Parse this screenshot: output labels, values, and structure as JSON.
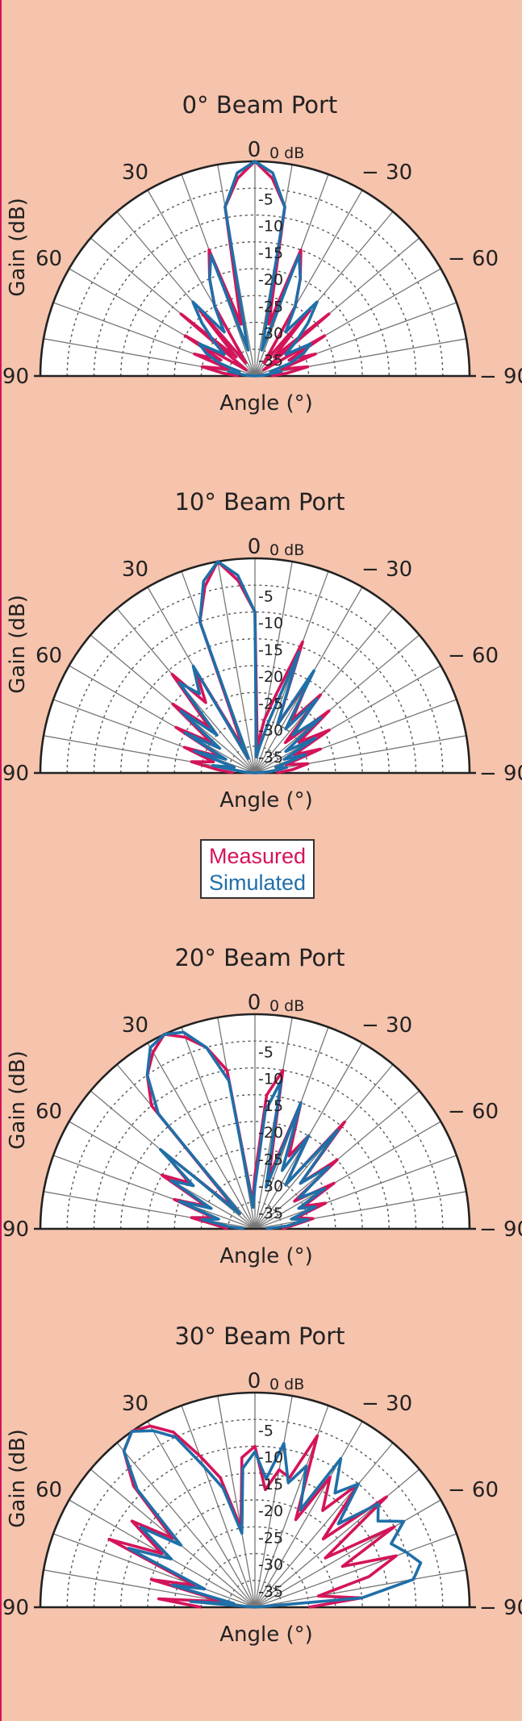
{
  "colors": {
    "background": "#f6c3ad",
    "measured": "#d4145a",
    "simulated": "#1f6fa8",
    "grid": "#555555"
  },
  "legend": {
    "measured": "Measured",
    "simulated": "Simulated"
  },
  "chart_data": [
    {
      "type": "polar",
      "title": "0°  Beam Port",
      "xlabel": "Angle (°)",
      "ylabel": "Gain (dB)",
      "angle_ticks": [
        "90",
        "60",
        "30",
        "0",
        "− 30",
        "− 60",
        "− 90"
      ],
      "radial_ticks": [
        "0 dB",
        "-5",
        "-10",
        "-15",
        "-20",
        "-25",
        "-30",
        "-35"
      ],
      "rlim": [
        -40,
        0
      ],
      "series": [
        {
          "name": "Measured",
          "angles": [
            -90,
            -85,
            -80,
            -75,
            -70,
            -65,
            -60,
            -55,
            -50,
            -45,
            -40,
            -35,
            -30,
            -25,
            -20,
            -15,
            -10,
            -5,
            0,
            5,
            10,
            15,
            20,
            25,
            30,
            35,
            40,
            45,
            50,
            55,
            60,
            65,
            70,
            75,
            80,
            85,
            90
          ],
          "values": [
            -37,
            -34,
            -30,
            -35,
            -28,
            -33,
            -25,
            -38,
            -22,
            -35,
            -24,
            -37,
            -25,
            -20,
            -15,
            -30,
            -8,
            -3,
            0,
            -3,
            -8,
            -30,
            -15,
            -20,
            -25,
            -37,
            -24,
            -35,
            -22,
            -38,
            -25,
            -33,
            -28,
            -35,
            -30,
            -34,
            -37
          ]
        },
        {
          "name": "Simulated",
          "angles": [
            -90,
            -85,
            -80,
            -75,
            -70,
            -65,
            -60,
            -55,
            -50,
            -45,
            -40,
            -35,
            -30,
            -25,
            -20,
            -15,
            -10,
            -5,
            0,
            5,
            10,
            15,
            20,
            25,
            30,
            35,
            40,
            45,
            50,
            55,
            60,
            65,
            70,
            75,
            80,
            85,
            90
          ],
          "values": [
            -40,
            -38,
            -35,
            -37,
            -33,
            -30,
            -28,
            -33,
            -30,
            -26,
            -22,
            -30,
            -25,
            -20,
            -16,
            -35,
            -8,
            -2,
            0,
            -2,
            -8,
            -35,
            -16,
            -20,
            -25,
            -30,
            -22,
            -26,
            -30,
            -33,
            -28,
            -30,
            -33,
            -37,
            -35,
            -38,
            -40
          ]
        }
      ]
    },
    {
      "type": "polar",
      "title": "10°  Beam Port",
      "xlabel": "Angle (°)",
      "ylabel": "Gain (dB)",
      "angle_ticks": [
        "90",
        "60",
        "30",
        "0",
        "− 30",
        "− 60",
        "− 90"
      ],
      "radial_ticks": [
        "0 dB",
        "-5",
        "-10",
        "-15",
        "-20",
        "-25",
        "-30",
        "-35"
      ],
      "rlim": [
        -40,
        0
      ],
      "series": [
        {
          "name": "Measured",
          "angles": [
            -90,
            -85,
            -80,
            -75,
            -70,
            -65,
            -60,
            -55,
            -50,
            -45,
            -40,
            -35,
            -30,
            -25,
            -20,
            -15,
            -10,
            -5,
            0,
            5,
            10,
            15,
            20,
            25,
            30,
            35,
            40,
            45,
            50,
            55,
            60,
            65,
            70,
            75,
            80,
            85,
            90
          ],
          "values": [
            -36,
            -33,
            -30,
            -34,
            -27,
            -32,
            -24,
            -30,
            -22,
            -32,
            -21,
            -28,
            -20,
            -30,
            -14,
            -25,
            -30,
            -35,
            -10,
            -4,
            0,
            -4,
            -10,
            -35,
            -18,
            -24,
            -16,
            -28,
            -20,
            -30,
            -23,
            -33,
            -26,
            -32,
            -28,
            -33,
            -36
          ]
        },
        {
          "name": "Simulated",
          "angles": [
            -90,
            -85,
            -80,
            -75,
            -70,
            -65,
            -60,
            -55,
            -50,
            -45,
            -40,
            -35,
            -30,
            -25,
            -20,
            -15,
            -10,
            -5,
            0,
            5,
            10,
            15,
            20,
            25,
            30,
            35,
            40,
            45,
            50,
            55,
            60,
            65,
            70,
            75,
            80,
            85,
            90
          ],
          "values": [
            -40,
            -37,
            -34,
            -36,
            -30,
            -34,
            -27,
            -33,
            -24,
            -30,
            -22,
            -30,
            -18,
            -30,
            -16,
            -30,
            -35,
            -37,
            -10,
            -3,
            0,
            -3,
            -10,
            -37,
            -17,
            -22,
            -18,
            -30,
            -22,
            -32,
            -25,
            -34,
            -28,
            -36,
            -32,
            -38,
            -40
          ]
        }
      ]
    },
    {
      "type": "polar",
      "title": "20°  Beam Port",
      "xlabel": "Angle (°)",
      "ylabel": "Gain (dB)",
      "angle_ticks": [
        "90",
        "60",
        "30",
        "0",
        "− 30",
        "− 60",
        "− 90"
      ],
      "radial_ticks": [
        "0 dB",
        "-5",
        "-10",
        "-15",
        "-20",
        "-25",
        "-30",
        "-35"
      ],
      "rlim": [
        -40,
        0
      ],
      "series": [
        {
          "name": "Measured",
          "angles": [
            -90,
            -85,
            -80,
            -75,
            -70,
            -65,
            -60,
            -55,
            -50,
            -45,
            -40,
            -35,
            -30,
            -25,
            -20,
            -15,
            -10,
            -5,
            0,
            5,
            10,
            15,
            20,
            25,
            30,
            35,
            40,
            45,
            50,
            55,
            60,
            65,
            70,
            75,
            80,
            85,
            90
          ],
          "values": [
            -35,
            -33,
            -29,
            -32,
            -26,
            -30,
            -23,
            -31,
            -20,
            -28,
            -14,
            -30,
            -20,
            -25,
            -15,
            -30,
            -10,
            -15,
            -30,
            -35,
            -10,
            -5,
            -2,
            0,
            -2,
            -5,
            -10,
            -35,
            -18,
            -25,
            -20,
            -30,
            -24,
            -32,
            -28,
            -33,
            -35
          ]
        },
        {
          "name": "Simulated",
          "angles": [
            -90,
            -85,
            -80,
            -75,
            -70,
            -65,
            -60,
            -55,
            -50,
            -45,
            -40,
            -35,
            -30,
            -25,
            -20,
            -15,
            -10,
            -5,
            0,
            5,
            10,
            15,
            20,
            25,
            30,
            35,
            40,
            45,
            50,
            55,
            60,
            65,
            70,
            75,
            80,
            85,
            90
          ],
          "values": [
            -38,
            -34,
            -30,
            -33,
            -28,
            -31,
            -25,
            -30,
            -22,
            -28,
            -16,
            -30,
            -20,
            -28,
            -15,
            -32,
            -12,
            -18,
            -32,
            -36,
            -12,
            -5,
            -1,
            0,
            -1,
            -5,
            -12,
            -36,
            -17,
            -26,
            -22,
            -31,
            -25,
            -33,
            -30,
            -35,
            -38
          ]
        }
      ]
    },
    {
      "type": "polar",
      "title": "30°  Beam Port",
      "xlabel": "Angle (°)",
      "ylabel": "Gain (dB)",
      "angle_ticks": [
        "90",
        "60",
        "30",
        "0",
        "− 30",
        "− 60",
        "− 90"
      ],
      "radial_ticks": [
        "0 dB",
        "-5",
        "-10",
        "-15",
        "-20",
        "-25",
        "-30",
        "-35"
      ],
      "rlim": [
        -40,
        0
      ],
      "series": [
        {
          "name": "Measured",
          "angles": [
            -90,
            -85,
            -80,
            -75,
            -70,
            -65,
            -60,
            -55,
            -50,
            -45,
            -40,
            -35,
            -30,
            -25,
            -20,
            -15,
            -10,
            -5,
            0,
            5,
            10,
            15,
            20,
            25,
            30,
            35,
            40,
            45,
            50,
            55,
            60,
            65,
            70,
            75,
            80,
            85,
            90
          ],
          "values": [
            -30,
            -20,
            -28,
            -18,
            -12,
            -22,
            -10,
            -24,
            -8,
            -22,
            -10,
            -18,
            -12,
            -22,
            -6,
            -15,
            -14,
            -18,
            -10,
            -12,
            -25,
            -15,
            -10,
            -4,
            -1,
            0,
            -2,
            -8,
            -20,
            -12,
            -20,
            -10,
            -28,
            -20,
            -34,
            -22,
            -30
          ]
        },
        {
          "name": "Simulated",
          "angles": [
            -90,
            -85,
            -80,
            -75,
            -70,
            -65,
            -60,
            -55,
            -50,
            -45,
            -40,
            -35,
            -30,
            -25,
            -20,
            -15,
            -10,
            -5,
            0,
            5,
            10,
            15,
            20,
            25,
            30,
            35,
            40,
            45,
            50,
            55,
            60,
            65,
            70,
            75,
            80,
            85,
            90
          ],
          "values": [
            -40,
            -20,
            -10,
            -8,
            -10,
            -12,
            -8,
            -12,
            -10,
            -18,
            -10,
            -14,
            -8,
            -20,
            -12,
            -16,
            -9,
            -16,
            -11,
            -14,
            -26,
            -17,
            -12,
            -5,
            -2,
            0,
            -2,
            -9,
            -22,
            -14,
            -22,
            -14,
            -30,
            -24,
            -36,
            -28,
            -40
          ]
        }
      ]
    }
  ]
}
